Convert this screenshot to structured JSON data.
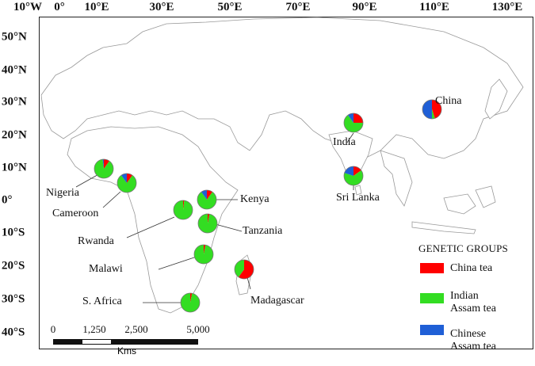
{
  "map": {
    "type": "choropleth-with-pie-markers",
    "region": "Africa and Asia",
    "x_axis_ticks": [
      "10°W",
      "0°",
      "10°E",
      "30°E",
      "50°E",
      "70°E",
      "90°E",
      "110°E",
      "130°E"
    ],
    "y_axis_ticks": [
      "50°N",
      "40°N",
      "30°N",
      "20°N",
      "10°N",
      "0°",
      "10°S",
      "20°S",
      "30°S",
      "40°S"
    ],
    "colors": {
      "china_tea": "#ff0000",
      "indian_assam_tea": "#33dd22",
      "chinese_assam_tea": "#1f5fd6",
      "land_border": "#999999"
    },
    "locations": [
      {
        "name": "China",
        "label": "China"
      },
      {
        "name": "India",
        "label": "India"
      },
      {
        "name": "Sri Lanka",
        "label": "Sri Lanka"
      },
      {
        "name": "Nigeria",
        "label": "Nigeria"
      },
      {
        "name": "Cameroon",
        "label": "Cameroon"
      },
      {
        "name": "Rwanda",
        "label": "Rwanda"
      },
      {
        "name": "Kenya",
        "label": "Kenya"
      },
      {
        "name": "Tanzania",
        "label": "Tanzania"
      },
      {
        "name": "Malawi",
        "label": "Malawi"
      },
      {
        "name": "Madagascar",
        "label": "Madagascar"
      },
      {
        "name": "S. Africa",
        "label": "S. Africa"
      }
    ],
    "legend": {
      "title": "GENETIC GROUPS",
      "items": [
        {
          "label_line1": "China tea",
          "label_line2": "",
          "color": "#ff0000"
        },
        {
          "label_line1": "Indian",
          "label_line2": "Assam tea",
          "color": "#33dd22"
        },
        {
          "label_line1": "Chinese",
          "label_line2": "Assam tea",
          "color": "#1f5fd6"
        }
      ]
    },
    "scale_bar": {
      "ticks": [
        "0",
        "1,250",
        "2,500",
        "5,000"
      ],
      "unit": "Kms"
    }
  },
  "chart_data": {
    "type": "pie",
    "title": "",
    "legend_title": "GENETIC GROUPS",
    "series_names": [
      "China tea",
      "Indian Assam tea",
      "Chinese Assam tea"
    ],
    "pies": [
      {
        "location": "China",
        "values": [
          45,
          5,
          50
        ]
      },
      {
        "location": "India",
        "values": [
          25,
          65,
          10
        ]
      },
      {
        "location": "Sri Lanka",
        "values": [
          15,
          65,
          20
        ]
      },
      {
        "location": "Nigeria",
        "values": [
          10,
          88,
          2
        ]
      },
      {
        "location": "Cameroon",
        "values": [
          10,
          80,
          10
        ]
      },
      {
        "location": "Rwanda",
        "values": [
          2,
          98,
          0
        ]
      },
      {
        "location": "Kenya",
        "values": [
          10,
          80,
          10
        ]
      },
      {
        "location": "Tanzania",
        "values": [
          3,
          97,
          0
        ]
      },
      {
        "location": "Malawi",
        "values": [
          3,
          97,
          0
        ]
      },
      {
        "location": "Madagascar",
        "values": [
          60,
          40,
          0
        ]
      },
      {
        "location": "S. Africa",
        "values": [
          3,
          97,
          0
        ]
      }
    ],
    "x_ticks": [
      "10°W",
      "0°",
      "10°E",
      "30°E",
      "50°E",
      "70°E",
      "90°E",
      "110°E",
      "130°E"
    ],
    "y_ticks": [
      "50°N",
      "40°N",
      "30°N",
      "20°N",
      "10°N",
      "0°",
      "10°S",
      "20°S",
      "30°S",
      "40°S"
    ]
  }
}
